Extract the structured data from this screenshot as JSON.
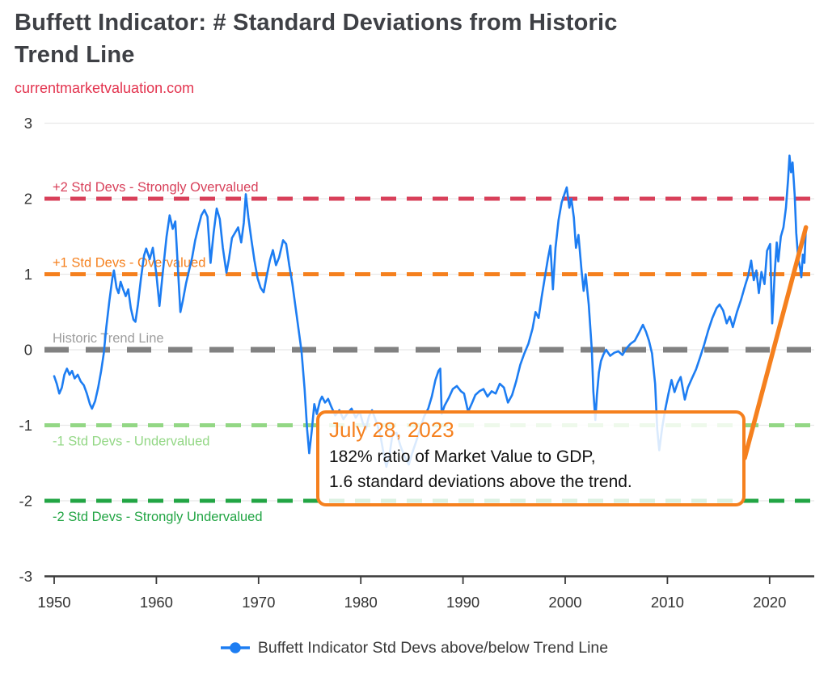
{
  "header": {
    "title": "Buffett Indicator: # Standard Deviations from Historic Trend Line",
    "title_lines": [
      "Buffett Indicator: # Standard Deviations from Historic",
      "Trend Line"
    ],
    "subtitle_link": "currentmarketvaluation.com"
  },
  "annotation": {
    "date": "July 28, 2023",
    "line1": "182% ratio of Market Value to GDP,",
    "line2": "1.6 standard deviations above the trend."
  },
  "legend": {
    "label": "Buffett Indicator Std Devs above/below Trend Line",
    "marker_color": "#1d7df2"
  },
  "colors": {
    "series_blue": "#1d7df2",
    "strongly_overvalued_red": "#d8405a",
    "overvalued_orange": "#f5801e",
    "trend_gray": "#808080",
    "undervalued_light_green": "#93d785",
    "strongly_undervalued_green": "#22a544",
    "accent_orange": "#f5801e",
    "link_red": "#e3334e",
    "axis_dark": "#3a3a3a",
    "tick_label": "#333333",
    "gridline": "#e8e8e8"
  },
  "chart_data": {
    "type": "line",
    "title": "Buffett Indicator: # Standard Deviations from Historic Trend Line",
    "source": "currentmarketvaluation.com",
    "xlabel": "",
    "ylabel": "",
    "grid": true,
    "legend_position": "bottom",
    "x_axis": {
      "ticks": [
        1950,
        1960,
        1970,
        1980,
        1990,
        2000,
        2010,
        2020
      ],
      "range": [
        1949.1,
        2024.4
      ]
    },
    "y_axis": {
      "ticks": [
        3,
        2,
        1,
        0,
        -1,
        -2,
        -3
      ],
      "range": [
        -3,
        3
      ]
    },
    "thresholds": [
      {
        "value": 2,
        "label": "+2 Std Devs - Strongly Overvalued",
        "color": "#d8405a",
        "label_color": "#d8405a",
        "label_side": "above"
      },
      {
        "value": 1,
        "label": "+1 Std Devs - Overvalued",
        "color": "#f5801e",
        "label_color": "#f5801e",
        "label_side": "above"
      },
      {
        "value": 0,
        "label": "Historic Trend Line",
        "color": "#818181",
        "label_color": "#9d9d9d",
        "label_side": "above"
      },
      {
        "value": -1,
        "label": "-1 Std Devs - Undervalued",
        "color": "#93d785",
        "label_color": "#93d785",
        "label_side": "below"
      },
      {
        "value": -2,
        "label": "-2 Std Devs - Strongly Undervalued",
        "color": "#22a544",
        "label_color": "#22a544",
        "label_side": "below"
      }
    ],
    "annotation_arrow": {
      "attaches_to": "callout-right-edge",
      "to_point": [
        2023.55,
        1.62
      ]
    },
    "series": [
      {
        "name": "Buffett Indicator Std Devs above/below Trend Line",
        "color": "#1d7df2",
        "points": [
          [
            1950.0,
            -0.35
          ],
          [
            1950.25,
            -0.45
          ],
          [
            1950.5,
            -0.58
          ],
          [
            1950.75,
            -0.5
          ],
          [
            1951.0,
            -0.33
          ],
          [
            1951.25,
            -0.25
          ],
          [
            1951.5,
            -0.33
          ],
          [
            1951.75,
            -0.28
          ],
          [
            1952.0,
            -0.38
          ],
          [
            1952.3,
            -0.33
          ],
          [
            1952.6,
            -0.42
          ],
          [
            1952.9,
            -0.47
          ],
          [
            1953.2,
            -0.58
          ],
          [
            1953.5,
            -0.72
          ],
          [
            1953.7,
            -0.78
          ],
          [
            1954.0,
            -0.68
          ],
          [
            1954.3,
            -0.5
          ],
          [
            1954.6,
            -0.28
          ],
          [
            1954.85,
            -0.05
          ],
          [
            1955.1,
            0.3
          ],
          [
            1955.4,
            0.65
          ],
          [
            1955.7,
            0.95
          ],
          [
            1955.85,
            1.05
          ],
          [
            1956.1,
            0.82
          ],
          [
            1956.3,
            0.75
          ],
          [
            1956.5,
            0.9
          ],
          [
            1956.75,
            0.8
          ],
          [
            1957.0,
            0.71
          ],
          [
            1957.25,
            0.8
          ],
          [
            1957.5,
            0.55
          ],
          [
            1957.75,
            0.4
          ],
          [
            1957.95,
            0.37
          ],
          [
            1958.2,
            0.6
          ],
          [
            1958.5,
            0.95
          ],
          [
            1958.8,
            1.25
          ],
          [
            1959.0,
            1.34
          ],
          [
            1959.35,
            1.2
          ],
          [
            1959.65,
            1.35
          ],
          [
            1960.0,
            1.0
          ],
          [
            1960.3,
            0.58
          ],
          [
            1960.65,
            1.05
          ],
          [
            1961.0,
            1.5
          ],
          [
            1961.3,
            1.78
          ],
          [
            1961.6,
            1.6
          ],
          [
            1961.85,
            1.7
          ],
          [
            1962.1,
            1.1
          ],
          [
            1962.35,
            0.5
          ],
          [
            1962.6,
            0.66
          ],
          [
            1962.9,
            0.88
          ],
          [
            1963.2,
            1.05
          ],
          [
            1963.5,
            1.22
          ],
          [
            1963.8,
            1.45
          ],
          [
            1964.1,
            1.62
          ],
          [
            1964.4,
            1.78
          ],
          [
            1964.7,
            1.85
          ],
          [
            1965.0,
            1.76
          ],
          [
            1965.3,
            1.15
          ],
          [
            1965.6,
            1.55
          ],
          [
            1965.9,
            1.87
          ],
          [
            1966.2,
            1.73
          ],
          [
            1966.5,
            1.35
          ],
          [
            1966.85,
            1.02
          ],
          [
            1967.1,
            1.2
          ],
          [
            1967.4,
            1.48
          ],
          [
            1967.7,
            1.55
          ],
          [
            1968.0,
            1.62
          ],
          [
            1968.3,
            1.42
          ],
          [
            1968.55,
            1.68
          ],
          [
            1968.75,
            2.06
          ],
          [
            1969.0,
            1.75
          ],
          [
            1969.3,
            1.45
          ],
          [
            1969.6,
            1.18
          ],
          [
            1969.9,
            0.95
          ],
          [
            1970.2,
            0.82
          ],
          [
            1970.5,
            0.76
          ],
          [
            1970.8,
            0.98
          ],
          [
            1971.1,
            1.18
          ],
          [
            1971.4,
            1.32
          ],
          [
            1971.7,
            1.12
          ],
          [
            1972.0,
            1.22
          ],
          [
            1972.4,
            1.45
          ],
          [
            1972.7,
            1.4
          ],
          [
            1973.0,
            1.12
          ],
          [
            1973.3,
            0.88
          ],
          [
            1973.6,
            0.58
          ],
          [
            1973.9,
            0.28
          ],
          [
            1974.2,
            -0.02
          ],
          [
            1974.5,
            -0.52
          ],
          [
            1974.75,
            -1.05
          ],
          [
            1974.95,
            -1.37
          ],
          [
            1975.2,
            -1.08
          ],
          [
            1975.45,
            -0.72
          ],
          [
            1975.7,
            -0.85
          ],
          [
            1976.0,
            -0.68
          ],
          [
            1976.2,
            -0.62
          ],
          [
            1976.5,
            -0.7
          ],
          [
            1976.8,
            -0.65
          ],
          [
            1977.1,
            -0.75
          ],
          [
            1977.5,
            -0.87
          ],
          [
            1977.9,
            -0.8
          ],
          [
            1978.3,
            -0.92
          ],
          [
            1978.7,
            -0.84
          ],
          [
            1979.1,
            -0.78
          ],
          [
            1979.5,
            -0.9
          ],
          [
            1979.9,
            -0.82
          ],
          [
            1980.2,
            -0.97
          ],
          [
            1980.5,
            -1.05
          ],
          [
            1980.8,
            -0.88
          ],
          [
            1981.1,
            -0.8
          ],
          [
            1981.5,
            -0.95
          ],
          [
            1981.9,
            -1.12
          ],
          [
            1982.2,
            -1.35
          ],
          [
            1982.5,
            -1.55
          ],
          [
            1982.8,
            -1.4
          ],
          [
            1983.1,
            -1.12
          ],
          [
            1983.5,
            -1.1
          ],
          [
            1983.9,
            -1.28
          ],
          [
            1984.3,
            -1.42
          ],
          [
            1984.7,
            -1.52
          ],
          [
            1985.0,
            -1.38
          ],
          [
            1985.4,
            -1.22
          ],
          [
            1985.8,
            -1.05
          ],
          [
            1986.2,
            -0.88
          ],
          [
            1986.6,
            -0.78
          ],
          [
            1986.95,
            -0.62
          ],
          [
            1987.3,
            -0.4
          ],
          [
            1987.6,
            -0.28
          ],
          [
            1987.78,
            -0.25
          ],
          [
            1987.92,
            -0.85
          ],
          [
            1988.2,
            -0.74
          ],
          [
            1988.6,
            -0.64
          ],
          [
            1989.0,
            -0.52
          ],
          [
            1989.4,
            -0.48
          ],
          [
            1989.8,
            -0.55
          ],
          [
            1990.1,
            -0.58
          ],
          [
            1990.5,
            -0.82
          ],
          [
            1990.9,
            -0.7
          ],
          [
            1991.2,
            -0.6
          ],
          [
            1991.6,
            -0.55
          ],
          [
            1992.0,
            -0.52
          ],
          [
            1992.4,
            -0.62
          ],
          [
            1992.8,
            -0.55
          ],
          [
            1993.2,
            -0.58
          ],
          [
            1993.6,
            -0.45
          ],
          [
            1994.0,
            -0.5
          ],
          [
            1994.4,
            -0.7
          ],
          [
            1994.8,
            -0.6
          ],
          [
            1995.2,
            -0.42
          ],
          [
            1995.6,
            -0.2
          ],
          [
            1996.0,
            -0.05
          ],
          [
            1996.4,
            0.08
          ],
          [
            1996.8,
            0.28
          ],
          [
            1997.1,
            0.5
          ],
          [
            1997.4,
            0.42
          ],
          [
            1997.7,
            0.7
          ],
          [
            1998.0,
            0.95
          ],
          [
            1998.3,
            1.2
          ],
          [
            1998.55,
            1.38
          ],
          [
            1998.8,
            0.8
          ],
          [
            1999.05,
            1.35
          ],
          [
            1999.35,
            1.72
          ],
          [
            1999.65,
            1.95
          ],
          [
            1999.9,
            2.05
          ],
          [
            2000.15,
            2.15
          ],
          [
            2000.4,
            1.88
          ],
          [
            2000.6,
            2.0
          ],
          [
            2000.85,
            1.75
          ],
          [
            2001.05,
            1.35
          ],
          [
            2001.3,
            1.52
          ],
          [
            2001.6,
            1.05
          ],
          [
            2001.8,
            0.78
          ],
          [
            2002.0,
            1.0
          ],
          [
            2002.3,
            0.6
          ],
          [
            2002.6,
            0.0
          ],
          [
            2002.75,
            -0.55
          ],
          [
            2002.95,
            -0.93
          ],
          [
            2003.1,
            -0.6
          ],
          [
            2003.3,
            -0.3
          ],
          [
            2003.5,
            -0.15
          ],
          [
            2003.75,
            -0.06
          ],
          [
            2004.0,
            0.0
          ],
          [
            2004.4,
            -0.08
          ],
          [
            2004.8,
            -0.04
          ],
          [
            2005.2,
            -0.02
          ],
          [
            2005.6,
            -0.07
          ],
          [
            2006.0,
            0.02
          ],
          [
            2006.4,
            0.08
          ],
          [
            2006.8,
            0.12
          ],
          [
            2007.2,
            0.22
          ],
          [
            2007.6,
            0.33
          ],
          [
            2007.9,
            0.24
          ],
          [
            2008.2,
            0.12
          ],
          [
            2008.5,
            -0.05
          ],
          [
            2008.8,
            -0.45
          ],
          [
            2009.0,
            -1.05
          ],
          [
            2009.2,
            -1.33
          ],
          [
            2009.5,
            -1.02
          ],
          [
            2009.8,
            -0.78
          ],
          [
            2010.1,
            -0.58
          ],
          [
            2010.4,
            -0.4
          ],
          [
            2010.7,
            -0.56
          ],
          [
            2011.0,
            -0.44
          ],
          [
            2011.3,
            -0.36
          ],
          [
            2011.7,
            -0.66
          ],
          [
            2012.0,
            -0.5
          ],
          [
            2012.4,
            -0.38
          ],
          [
            2012.8,
            -0.26
          ],
          [
            2013.2,
            -0.1
          ],
          [
            2013.6,
            0.07
          ],
          [
            2014.0,
            0.26
          ],
          [
            2014.4,
            0.42
          ],
          [
            2014.8,
            0.55
          ],
          [
            2015.1,
            0.6
          ],
          [
            2015.45,
            0.52
          ],
          [
            2015.8,
            0.35
          ],
          [
            2016.1,
            0.44
          ],
          [
            2016.4,
            0.3
          ],
          [
            2016.8,
            0.5
          ],
          [
            2017.2,
            0.66
          ],
          [
            2017.6,
            0.85
          ],
          [
            2017.9,
            0.98
          ],
          [
            2018.2,
            1.18
          ],
          [
            2018.45,
            0.92
          ],
          [
            2018.7,
            1.05
          ],
          [
            2018.95,
            0.75
          ],
          [
            2019.2,
            1.03
          ],
          [
            2019.5,
            0.87
          ],
          [
            2019.75,
            1.31
          ],
          [
            2020.05,
            1.4
          ],
          [
            2020.25,
            0.35
          ],
          [
            2020.5,
            1.02
          ],
          [
            2020.7,
            1.42
          ],
          [
            2020.85,
            1.17
          ],
          [
            2021.1,
            1.5
          ],
          [
            2021.35,
            1.62
          ],
          [
            2021.6,
            1.88
          ],
          [
            2021.8,
            2.25
          ],
          [
            2021.95,
            2.57
          ],
          [
            2022.1,
            2.35
          ],
          [
            2022.25,
            2.48
          ],
          [
            2022.45,
            2.05
          ],
          [
            2022.6,
            1.55
          ],
          [
            2022.8,
            1.2
          ],
          [
            2023.0,
            1.07
          ],
          [
            2023.1,
            0.96
          ],
          [
            2023.25,
            1.26
          ],
          [
            2023.4,
            1.15
          ],
          [
            2023.55,
            1.62
          ]
        ]
      }
    ]
  }
}
